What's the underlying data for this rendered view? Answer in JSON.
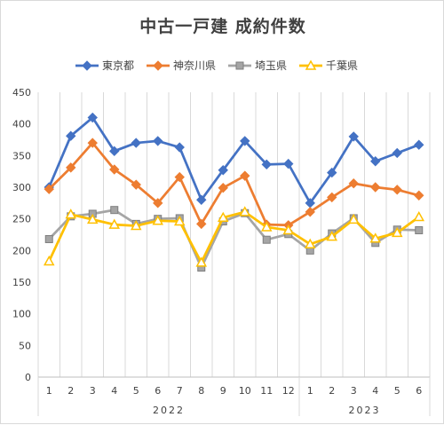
{
  "chart_data": {
    "type": "line",
    "title": "中古一戸建 成約件数",
    "ylim": [
      0,
      450
    ],
    "ytick_step": 50,
    "grid": "vertical",
    "legend_position": "top",
    "year_groups": [
      {
        "label": "2022",
        "months": [
          "1",
          "2",
          "3",
          "4",
          "5",
          "6",
          "7",
          "8",
          "9",
          "10",
          "11",
          "12"
        ]
      },
      {
        "label": "2023",
        "months": [
          "1",
          "2",
          "3",
          "4",
          "5",
          "6"
        ]
      }
    ],
    "series": [
      {
        "name": "東京都",
        "color": "#4472C4",
        "marker": "diamond",
        "values": [
          300,
          381,
          410,
          357,
          370,
          373,
          363,
          280,
          327,
          373,
          336,
          337,
          275,
          323,
          380,
          341,
          354,
          367
        ]
      },
      {
        "name": "神奈川県",
        "color": "#ED7D31",
        "marker": "diamond",
        "values": [
          297,
          331,
          370,
          328,
          304,
          275,
          316,
          242,
          299,
          318,
          241,
          240,
          261,
          284,
          306,
          300,
          296,
          287
        ]
      },
      {
        "name": "埼玉県",
        "color": "#A5A5A5",
        "marker": "square",
        "values": [
          218,
          254,
          258,
          264,
          242,
          250,
          251,
          173,
          246,
          259,
          217,
          226,
          200,
          227,
          251,
          212,
          233,
          232
        ]
      },
      {
        "name": "千葉県",
        "color": "#FFC000",
        "marker": "triangle",
        "values": [
          183,
          257,
          249,
          241,
          239,
          247,
          246,
          181,
          252,
          261,
          237,
          232,
          210,
          222,
          249,
          219,
          228,
          253
        ]
      }
    ]
  }
}
